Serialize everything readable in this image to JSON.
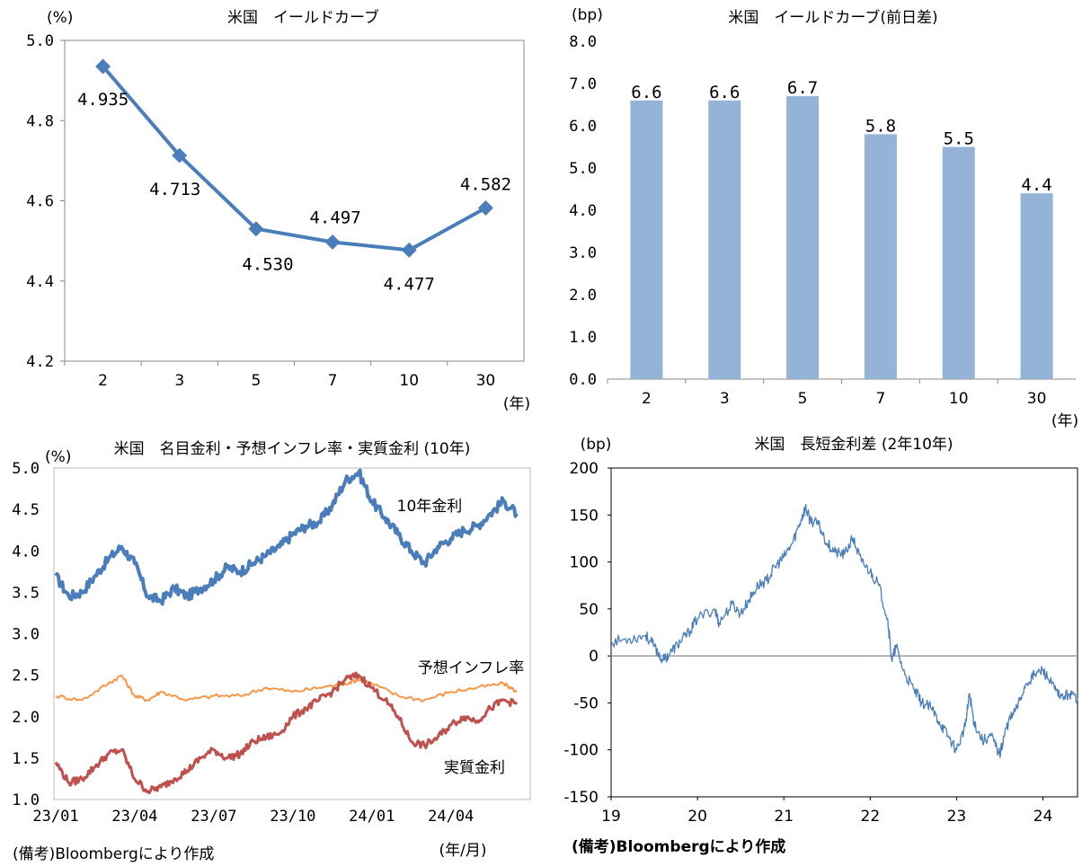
{
  "chart_data": [
    {
      "type": "line",
      "title": "米国　イールドカーブ",
      "ylabel": "(%)",
      "xunit": "(年)",
      "categories": [
        "2",
        "3",
        "5",
        "7",
        "10",
        "30"
      ],
      "values": [
        4.935,
        4.713,
        4.53,
        4.497,
        4.477,
        4.582
      ],
      "value_labels": [
        "4.935",
        "4.713",
        "4.530",
        "4.497",
        "4.477",
        "4.582"
      ],
      "ylim": [
        4.2,
        5.0
      ],
      "yticks": [
        "4.2",
        "4.4",
        "4.6",
        "4.8",
        "5.0"
      ],
      "color": "#4a7ebb"
    },
    {
      "type": "bar",
      "title": "米国　イールドカーブ(前日差)",
      "ylabel": "(bp)",
      "xunit": "(年)",
      "categories": [
        "2",
        "3",
        "5",
        "7",
        "10",
        "30"
      ],
      "values": [
        6.6,
        6.6,
        6.7,
        5.8,
        5.5,
        4.4
      ],
      "value_labels": [
        "6.6",
        "6.6",
        "6.7",
        "5.8",
        "5.5",
        "4.4"
      ],
      "ylim": [
        0,
        8
      ],
      "yticks": [
        "0.0",
        "1.0",
        "2.0",
        "3.0",
        "4.0",
        "5.0",
        "6.0",
        "7.0",
        "8.0"
      ],
      "color": "#95b3d7"
    },
    {
      "type": "line",
      "title": "米国　名目金利・予想インフレ率・実質金利 (10年)",
      "ylabel": "(%)",
      "xunit": "(年/月)",
      "ylim": [
        1.0,
        5.0
      ],
      "yticks": [
        "1.0",
        "1.5",
        "2.0",
        "2.5",
        "3.0",
        "3.5",
        "4.0",
        "4.5",
        "5.0"
      ],
      "xticks": [
        "23/01",
        "23/04",
        "23/07",
        "23/10",
        "24/01",
        "24/04"
      ],
      "series": [
        {
          "name": "10年金利",
          "color": "#4a7ebb",
          "x": [
            0,
            0.5,
            1.0,
            1.5,
            2.0,
            2.5,
            3.0,
            3.5,
            4.0,
            4.5,
            5.0,
            5.5,
            6.0,
            6.5,
            7.0,
            7.5,
            8.0,
            8.5,
            9.0,
            9.5,
            10.0,
            10.5,
            11.0,
            11.5,
            12.0,
            12.5,
            13.0,
            13.5,
            14.0,
            14.5,
            15.0,
            15.5,
            16.0,
            16.5,
            17.0,
            17.5
          ],
          "y": [
            3.7,
            3.45,
            3.5,
            3.7,
            3.9,
            4.05,
            3.85,
            3.45,
            3.4,
            3.55,
            3.45,
            3.55,
            3.65,
            3.8,
            3.75,
            3.85,
            3.95,
            4.05,
            4.2,
            4.3,
            4.35,
            4.55,
            4.85,
            4.95,
            4.6,
            4.4,
            4.2,
            4.0,
            3.85,
            4.05,
            4.15,
            4.25,
            4.3,
            4.45,
            4.6,
            4.45
          ]
        },
        {
          "name": "予想インフレ率",
          "color": "#f79646",
          "x": [
            0,
            1.0,
            2.0,
            2.5,
            3.0,
            3.5,
            4.0,
            5.0,
            6.0,
            7.0,
            8.0,
            9.0,
            10.0,
            11.0,
            11.5,
            12.0,
            13.0,
            14.0,
            15.0,
            16.0,
            17.0,
            17.5
          ],
          "y": [
            2.25,
            2.2,
            2.4,
            2.5,
            2.25,
            2.2,
            2.3,
            2.2,
            2.25,
            2.25,
            2.35,
            2.3,
            2.35,
            2.4,
            2.45,
            2.4,
            2.25,
            2.2,
            2.3,
            2.35,
            2.4,
            2.3
          ]
        },
        {
          "name": "実質金利",
          "color": "#c0504d",
          "x": [
            0,
            0.5,
            1.0,
            1.5,
            2.0,
            2.5,
            3.0,
            3.5,
            4.0,
            4.5,
            5.0,
            5.5,
            6.0,
            6.5,
            7.0,
            7.5,
            8.0,
            8.5,
            9.0,
            9.5,
            10.0,
            10.5,
            11.0,
            11.5,
            12.0,
            12.5,
            13.0,
            13.5,
            14.0,
            14.5,
            15.0,
            15.5,
            16.0,
            16.5,
            17.0,
            17.5
          ],
          "y": [
            1.45,
            1.2,
            1.25,
            1.4,
            1.55,
            1.6,
            1.25,
            1.1,
            1.15,
            1.25,
            1.35,
            1.5,
            1.6,
            1.5,
            1.55,
            1.7,
            1.75,
            1.8,
            2.0,
            2.1,
            2.2,
            2.3,
            2.45,
            2.5,
            2.35,
            2.2,
            2.0,
            1.7,
            1.65,
            1.75,
            1.9,
            2.0,
            1.95,
            2.1,
            2.2,
            2.15
          ]
        }
      ],
      "xlim": [
        0,
        17.5
      ]
    },
    {
      "type": "line",
      "title": "米国　長短金利差 (2年10年)",
      "ylabel": "(bp)",
      "ylim": [
        -150,
        200
      ],
      "yticks": [
        "-150",
        "-100",
        "-50",
        "0",
        "50",
        "100",
        "150",
        "200"
      ],
      "xticks": [
        "19",
        "20",
        "21",
        "22",
        "23",
        "24"
      ],
      "xlim": [
        19,
        24.4
      ],
      "series": [
        {
          "name": "",
          "color": "#4a7ebb",
          "x": [
            19.0,
            19.2,
            19.4,
            19.5,
            19.6,
            19.7,
            19.8,
            19.9,
            20.0,
            20.2,
            20.25,
            20.4,
            20.5,
            20.6,
            20.7,
            20.8,
            20.9,
            21.0,
            21.1,
            21.2,
            21.25,
            21.3,
            21.4,
            21.5,
            21.6,
            21.7,
            21.8,
            21.9,
            22.0,
            22.1,
            22.2,
            22.25,
            22.3,
            22.4,
            22.5,
            22.6,
            22.7,
            22.8,
            22.9,
            23.0,
            23.1,
            23.15,
            23.2,
            23.3,
            23.4,
            23.5,
            23.55,
            23.6,
            23.7,
            23.8,
            23.9,
            24.0,
            24.1,
            24.2,
            24.3,
            24.4
          ],
          "y": [
            15,
            18,
            22,
            10,
            -5,
            5,
            15,
            25,
            40,
            50,
            35,
            55,
            45,
            60,
            75,
            80,
            95,
            105,
            120,
            145,
            158,
            145,
            140,
            120,
            110,
            108,
            125,
            100,
            90,
            75,
            40,
            -5,
            10,
            -20,
            -35,
            -50,
            -55,
            -70,
            -85,
            -100,
            -75,
            -40,
            -70,
            -90,
            -85,
            -105,
            -85,
            -70,
            -55,
            -30,
            -20,
            -15,
            -30,
            -45,
            -40,
            -45
          ]
        }
      ]
    }
  ],
  "notes": {
    "left": "(備考)Bloombergにより作成",
    "right": "(備考)Bloombergにより作成"
  }
}
